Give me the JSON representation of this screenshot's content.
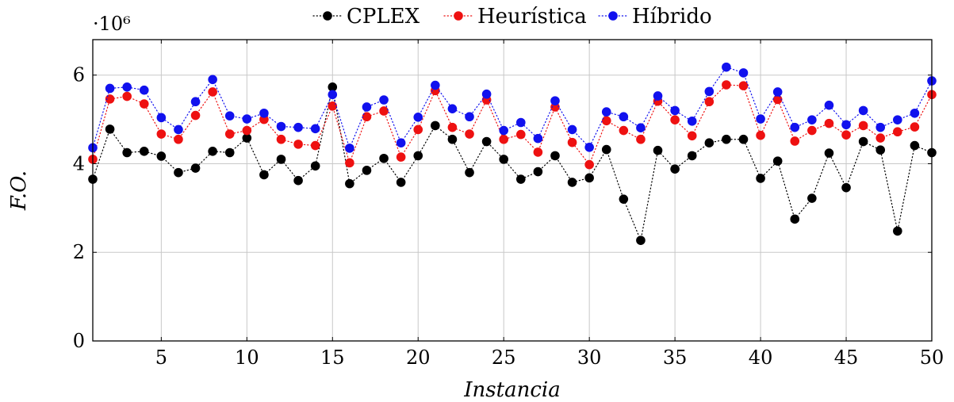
{
  "chart_data": {
    "type": "line",
    "xlabel": "Instancia",
    "ylabel": "F.O.",
    "y_scale_label": "·10⁶",
    "xlim": [
      1,
      50
    ],
    "ylim": [
      0,
      6.8
    ],
    "xticks": [
      5,
      10,
      15,
      20,
      25,
      30,
      35,
      40,
      45,
      50
    ],
    "yticks": [
      0,
      2,
      4,
      6
    ],
    "grid": true,
    "legend_position": "top-center",
    "x": [
      1,
      2,
      3,
      4,
      5,
      6,
      7,
      8,
      9,
      10,
      11,
      12,
      13,
      14,
      15,
      16,
      17,
      18,
      19,
      20,
      21,
      22,
      23,
      24,
      25,
      26,
      27,
      28,
      29,
      30,
      31,
      32,
      33,
      34,
      35,
      36,
      37,
      38,
      39,
      40,
      41,
      42,
      43,
      44,
      45,
      46,
      47,
      48,
      49,
      50
    ],
    "series": [
      {
        "name": "CPLEX",
        "color": "#000000",
        "values": [
          3.65,
          4.78,
          4.25,
          4.28,
          4.17,
          3.8,
          3.9,
          4.28,
          4.25,
          4.58,
          3.75,
          4.1,
          3.62,
          3.95,
          5.73,
          3.55,
          3.85,
          4.12,
          3.58,
          4.18,
          4.86,
          4.55,
          3.8,
          4.5,
          4.1,
          3.65,
          3.82,
          4.18,
          3.58,
          3.68,
          4.32,
          3.2,
          2.27,
          4.3,
          3.88,
          4.18,
          4.47,
          4.55,
          4.55,
          3.67,
          4.06,
          2.75,
          3.22,
          4.24,
          3.46,
          4.5,
          4.31,
          2.48,
          4.41,
          4.25
        ]
      },
      {
        "name": "Heurística",
        "color": "#ee1111",
        "values": [
          4.1,
          5.46,
          5.52,
          5.35,
          4.67,
          4.55,
          5.09,
          5.62,
          4.67,
          4.75,
          5.0,
          4.55,
          4.44,
          4.41,
          5.3,
          4.02,
          5.06,
          5.19,
          4.15,
          4.77,
          5.65,
          4.82,
          4.67,
          5.44,
          4.55,
          4.66,
          4.26,
          5.28,
          4.48,
          3.98,
          4.97,
          4.75,
          4.55,
          5.41,
          4.99,
          4.63,
          5.4,
          5.78,
          5.76,
          4.64,
          5.45,
          4.51,
          4.75,
          4.91,
          4.65,
          4.86,
          4.58,
          4.72,
          4.83,
          5.56
        ]
      },
      {
        "name": "Híbrido",
        "color": "#1111ee",
        "values": [
          4.36,
          5.7,
          5.73,
          5.66,
          5.04,
          4.77,
          5.4,
          5.9,
          5.08,
          5.01,
          5.14,
          4.84,
          4.82,
          4.79,
          5.56,
          4.35,
          5.28,
          5.44,
          4.47,
          5.05,
          5.77,
          5.24,
          5.06,
          5.57,
          4.75,
          4.93,
          4.57,
          5.42,
          4.77,
          4.37,
          5.17,
          5.06,
          4.81,
          5.53,
          5.2,
          4.96,
          5.63,
          6.18,
          6.05,
          5.01,
          5.62,
          4.82,
          4.99,
          5.32,
          4.88,
          5.2,
          4.82,
          4.99,
          5.14,
          5.87
        ]
      }
    ]
  }
}
